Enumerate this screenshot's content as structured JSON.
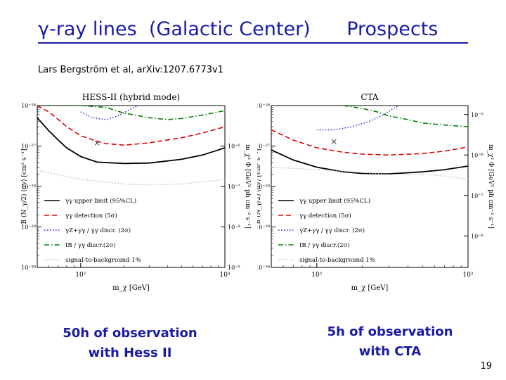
{
  "slide": {
    "title": "γ-ray lines  (Galactic Center)      Prospects",
    "citation": "Lars Bergström et al, arXiv:1207.6773v1",
    "caption_left": "50h of observation\nwith Hess II",
    "caption_right": "5h of observation\nwith CTA",
    "page_number": "19"
  },
  "chart_data": [
    {
      "type": "line",
      "title": "HESS-II (hybrid mode)",
      "xlabel": "m_χ [GeV]",
      "ylabel": "B (N_γ/2) ⟨σv⟩ [cm³ s⁻¹]",
      "y2label": "m_χ² Φ [GeV² ph cm⁻² s⁻¹]",
      "xscale": "log",
      "yscale": "log",
      "xlim": [
        50,
        1000
      ],
      "ylim": [
        1e-30,
        1e-26
      ],
      "xticks": [
        {
          "v": 100,
          "t": "10²"
        },
        {
          "v": 1000,
          "t": "10³"
        }
      ],
      "yticks": [
        {
          "v": 1e-26,
          "t": "10⁻²⁶"
        },
        {
          "v": 1e-27,
          "t": "10⁻²⁷"
        },
        {
          "v": 1e-28,
          "t": "10⁻²⁸"
        },
        {
          "v": 1e-29,
          "t": "10⁻²⁹"
        },
        {
          "v": 1e-30,
          "t": "10⁻³⁰"
        }
      ],
      "y2ticks": [
        {
          "y": 1e-27,
          "t": "10⁻⁶"
        },
        {
          "y": 1e-28,
          "t": "10⁻⁷"
        },
        {
          "y": 1e-29,
          "t": "10⁻⁸"
        },
        {
          "y": 1e-30,
          "t": "10⁻⁹"
        }
      ],
      "legend_position": "bottom-left",
      "marker": {
        "x": 130,
        "y": 1.2e-27,
        "symbol": "×"
      },
      "series": [
        {
          "name": "γγ upper limit (95%CL)",
          "color": "#000000",
          "style": "solid",
          "x": [
            50,
            60,
            70,
            80,
            100,
            130,
            200,
            300,
            500,
            700,
            1000
          ],
          "y": [
            5e-27,
            2.4e-27,
            1.4e-27,
            9e-28,
            5.5e-28,
            4e-28,
            3.7e-28,
            3.8e-28,
            4.7e-28,
            6e-28,
            9e-28
          ]
        },
        {
          "name": "γγ detection (5σ)",
          "color": "#e00000",
          "style": "dashed",
          "x": [
            50,
            60,
            70,
            80,
            100,
            130,
            150,
            200,
            300,
            500,
            700,
            1000
          ],
          "y": [
            1e-26,
            7e-27,
            4.5e-27,
            3e-27,
            1.8e-27,
            1.3e-27,
            1.15e-27,
            1.05e-27,
            1.2e-27,
            1.6e-27,
            2.1e-27,
            3e-27
          ]
        },
        {
          "name": "γZ+γγ / γγ discr. (2σ)",
          "color": "#1a1acc",
          "style": "dotted",
          "x": [
            100,
            120,
            150,
            180,
            220,
            250
          ],
          "y": [
            7e-27,
            5e-27,
            4.5e-27,
            5.5e-27,
            8e-27,
            1e-26
          ]
        },
        {
          "name": "IB / γγ discr.(2σ)",
          "color": "#008000",
          "style": "dashdot",
          "x": [
            50,
            100,
            150,
            200,
            300,
            400,
            500,
            700,
            1000
          ],
          "y": [
            1e-26,
            1e-26,
            9e-27,
            6.5e-27,
            5e-27,
            4.5e-27,
            4.8e-27,
            5.8e-27,
            7.5e-27
          ]
        },
        {
          "name": "signal-to-background 1%",
          "color": "#bbbbbb",
          "style": "dotted",
          "x": [
            50,
            100,
            200,
            300,
            500,
            700,
            1000
          ],
          "y": [
            2.5e-28,
            1.5e-28,
            1.15e-28,
            1.1e-28,
            1.15e-28,
            1.3e-28,
            1.5e-28
          ]
        }
      ]
    },
    {
      "type": "line",
      "title": "CTA",
      "xlabel": "m_χ [GeV]",
      "ylabel": "B (N_γ/2) ⟨σv⟩ [cm³ s⁻¹]",
      "y2label": "m_χ² Φ [GeV² ph cm⁻² s⁻¹]",
      "xscale": "log",
      "yscale": "log",
      "xlim": [
        50,
        1000
      ],
      "ylim": [
        1e-30,
        1e-26
      ],
      "xticks": [
        {
          "v": 100,
          "t": "10²"
        },
        {
          "v": 1000,
          "t": "10³"
        }
      ],
      "yticks": [
        {
          "v": 1e-26,
          "t": "10⁻²⁶"
        },
        {
          "v": 1e-27,
          "t": "10⁻²⁷"
        },
        {
          "v": 1e-28,
          "t": "10⁻²⁸"
        },
        {
          "v": 1e-29,
          "t": "10⁻²⁹"
        },
        {
          "v": 1e-30,
          "t": "10⁻³⁰"
        }
      ],
      "y2ticks": [
        {
          "y": 6e-27,
          "t": "10⁻⁵"
        },
        {
          "y": 6e-28,
          "t": "10⁻⁶"
        },
        {
          "y": 6e-29,
          "t": "10⁻⁷"
        },
        {
          "y": 6e-30,
          "t": "10⁻⁸"
        }
      ],
      "legend_position": "bottom-left",
      "marker": {
        "x": 130,
        "y": 1.3e-27,
        "symbol": "×"
      },
      "series": [
        {
          "name": "γγ upper limit (95%CL)",
          "color": "#000000",
          "style": "solid",
          "x": [
            50,
            70,
            100,
            150,
            200,
            300,
            500,
            700,
            1000
          ],
          "y": [
            8e-28,
            4.5e-28,
            3e-28,
            2.3e-28,
            2.1e-28,
            2.05e-28,
            2.3e-28,
            2.6e-28,
            3.2e-28
          ]
        },
        {
          "name": "γγ detection (5σ)",
          "color": "#e00000",
          "style": "dashed",
          "x": [
            50,
            70,
            100,
            150,
            200,
            300,
            500,
            700,
            1000
          ],
          "y": [
            2.5e-27,
            1.4e-27,
            9e-28,
            7e-28,
            6.3e-28,
            6e-28,
            6.5e-28,
            7.5e-28,
            9.5e-28
          ]
        },
        {
          "name": "γZ+γγ / γγ discr. (2σ)",
          "color": "#1a1acc",
          "style": "dotted",
          "x": [
            100,
            130,
            170,
            220,
            280,
            320,
            350
          ],
          "y": [
            2.5e-27,
            2.5e-27,
            3e-27,
            4e-27,
            6e-27,
            8.5e-27,
            1e-26
          ]
        },
        {
          "name": "IB / γγ discr.(2σ)",
          "color": "#008000",
          "style": "dashdot",
          "x": [
            150,
            200,
            250,
            300,
            400,
            500,
            700,
            1000
          ],
          "y": [
            1e-26,
            8.5e-27,
            7e-27,
            5.5e-27,
            4.5e-27,
            3.7e-27,
            3.3e-27,
            3e-27
          ]
        },
        {
          "name": "signal-to-background 1%",
          "color": "#bbbbbb",
          "style": "dotted",
          "x": [
            50,
            100,
            200,
            300,
            500,
            700,
            1000
          ],
          "y": [
            3e-28,
            2.6e-28,
            2.2e-28,
            2e-28,
            2e-28,
            1.8e-28,
            1.5e-28
          ]
        }
      ]
    }
  ]
}
